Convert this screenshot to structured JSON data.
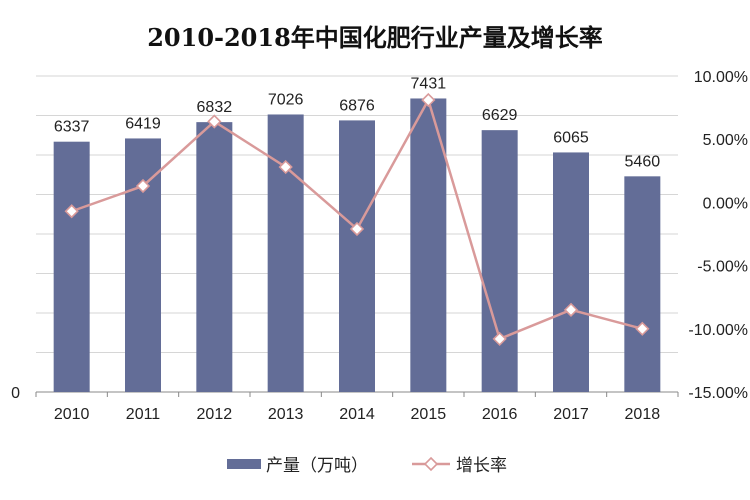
{
  "title": "2010-2018年中国化肥行业产量及增长率",
  "chart_data": {
    "type": "bar",
    "title": "2010-2018年中国化肥行业产量及增长率",
    "categories": [
      "2010",
      "2011",
      "2012",
      "2013",
      "2014",
      "2015",
      "2016",
      "2017",
      "2018"
    ],
    "series": [
      {
        "name": "产量（万吨）",
        "type": "bar",
        "axis": "left",
        "color": "#636d97",
        "values": [
          6337,
          6419,
          6832,
          7026,
          6876,
          7431,
          6629,
          6065,
          5460
        ]
      },
      {
        "name": "增长率",
        "type": "line",
        "axis": "right",
        "color": "#d99a9a",
        "marker": "diamond",
        "values": [
          -0.7,
          1.3,
          6.4,
          2.8,
          -2.1,
          8.1,
          -10.8,
          -8.5,
          -10.0
        ]
      }
    ],
    "y_left": {
      "ylim": [
        0,
        8000
      ],
      "ticks": [
        0,
        1000,
        2000,
        3000,
        4000,
        5000,
        6000,
        7000,
        8000
      ],
      "tick_labels": [
        "0",
        "",
        "",
        "",
        "",
        "",
        "",
        "",
        ""
      ]
    },
    "y_right": {
      "ylim": [
        -15,
        10
      ],
      "ticks": [
        10,
        5,
        0,
        -5,
        -10,
        -15
      ],
      "tick_labels": [
        "10.00%",
        "5.00%",
        "0.00%",
        "-5.00%",
        "-10.00%",
        "-15.00%"
      ]
    },
    "grid": true,
    "legend_position": "bottom-center"
  }
}
